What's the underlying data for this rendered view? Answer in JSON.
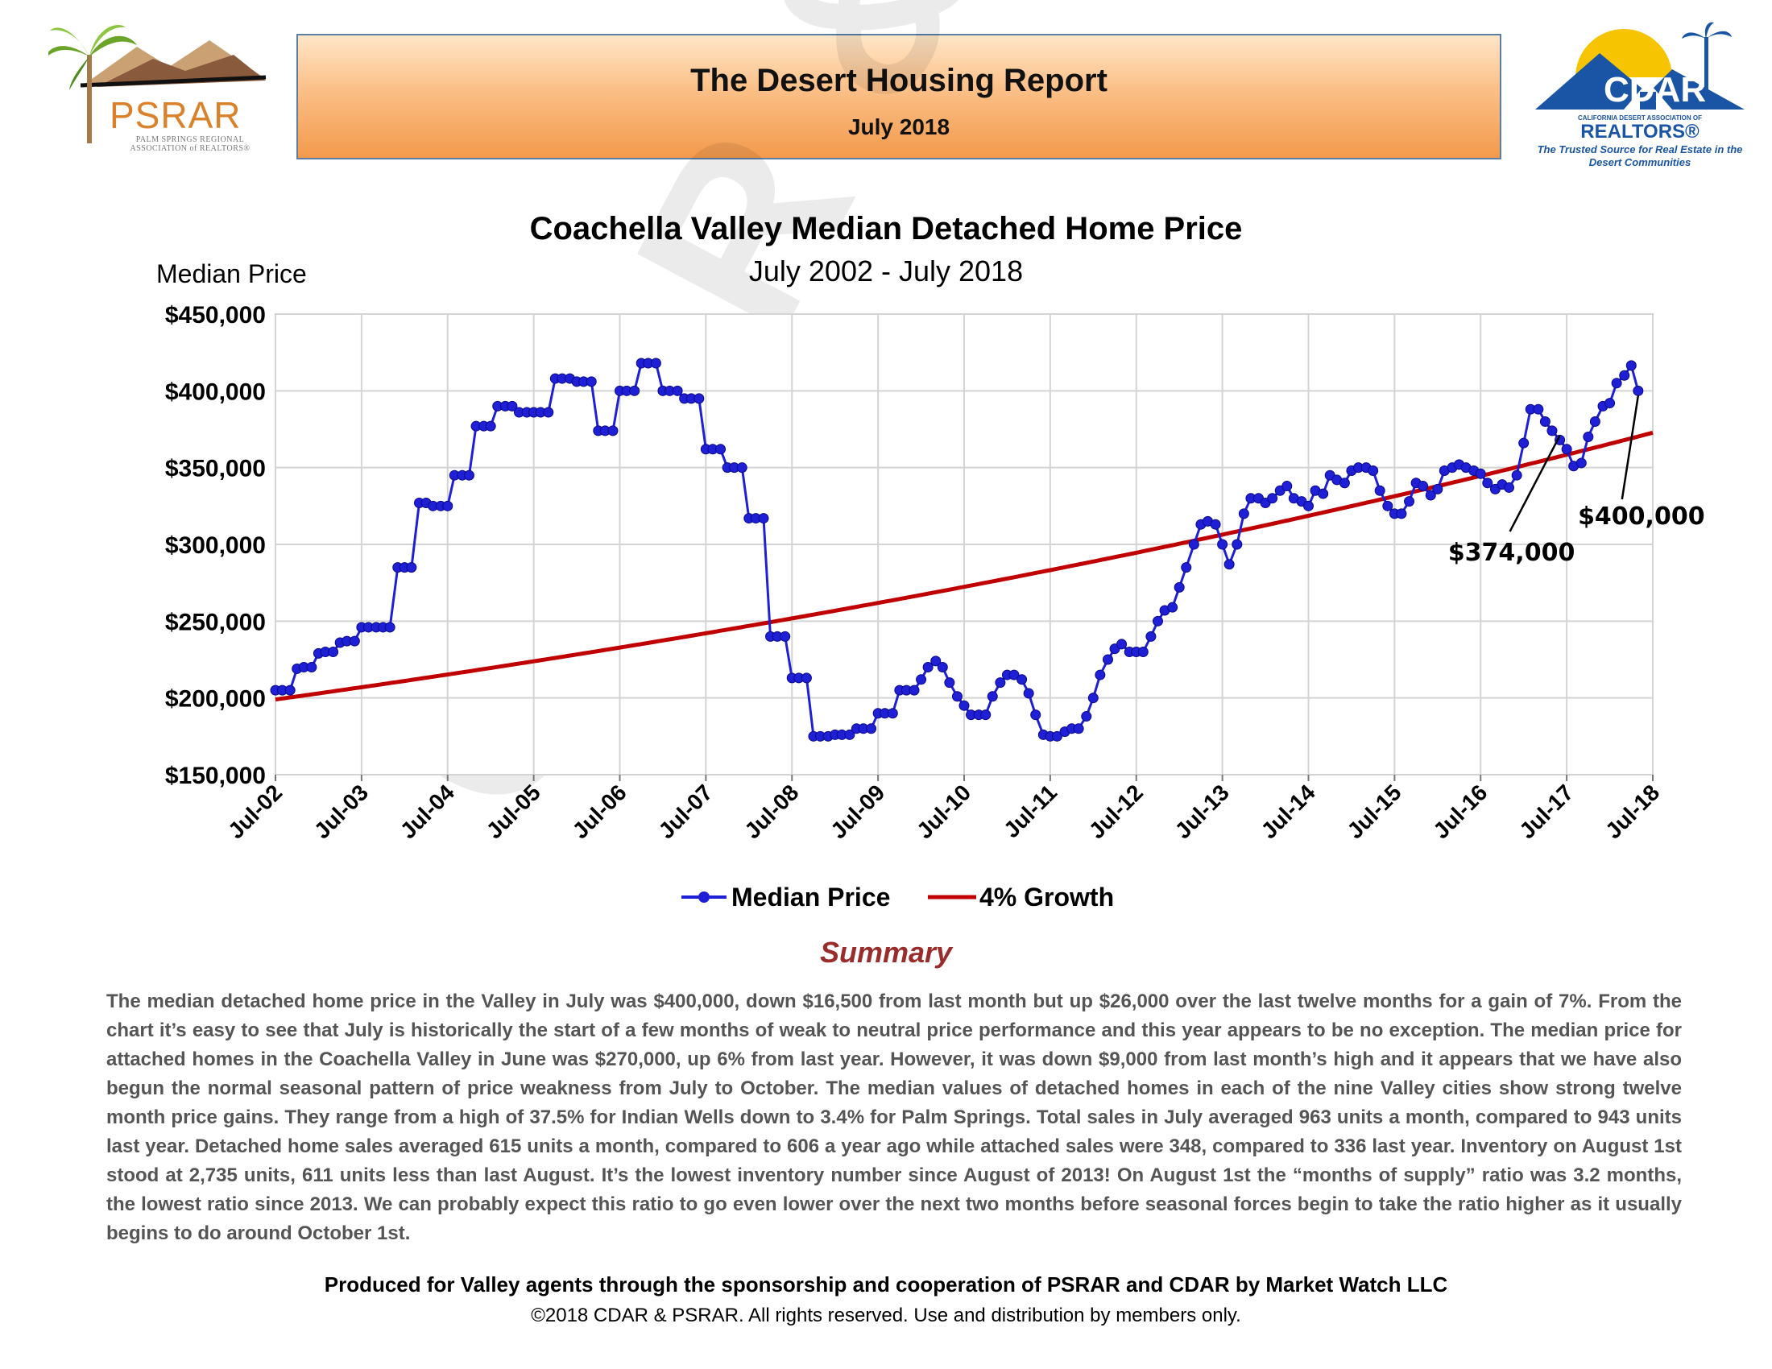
{
  "header": {
    "left_logo": {
      "name": "PSRAR",
      "subtitle": "PALM SPRINGS REGIONAL ASSOCIATION of REALTORS®",
      "icon": "palm-tree-mountains-logo"
    },
    "banner_title": "The Desert Housing Report",
    "banner_date": "July 2018",
    "right_logo": {
      "name": "CDAR",
      "assoc": "CALIFORNIA DESERT ASSOCIATION OF",
      "realtors": "REALTORS®",
      "tagline": "The Trusted Source for Real Estate in the Desert Communities",
      "icon": "house-palm-logo"
    }
  },
  "watermark": "CDAR & PSRAR",
  "colors": {
    "median": "#1f1fd6",
    "growth": "#c00000",
    "summary_heading": "#9b2c2c",
    "banner_border": "#5b7ea6"
  },
  "chart_data": {
    "type": "line",
    "title": "Coachella Valley Median Detached Home Price",
    "subtitle": "July 2002 - July 2018",
    "ylabel": "Median Price",
    "xlabel": "",
    "ylim": [
      150000,
      450000
    ],
    "yticks": [
      450000,
      400000,
      350000,
      300000,
      250000,
      200000,
      150000
    ],
    "ytick_labels": [
      "$450,000",
      "$400,000",
      "$350,000",
      "$300,000",
      "$250,000",
      "$200,000",
      "$150,000"
    ],
    "xlim": [
      2002.5,
      2018.5
    ],
    "x_tick_labels": [
      "Jul-02",
      "Jul-03",
      "Jul-04",
      "Jul-05",
      "Jul-06",
      "Jul-07",
      "Jul-08",
      "Jul-09",
      "Jul-10",
      "Jul-11",
      "Jul-12",
      "Jul-13",
      "Jul-14",
      "Jul-15",
      "Jul-16",
      "Jul-17",
      "Jul-18"
    ],
    "grid": true,
    "legend_position": "bottom",
    "series": [
      {
        "name": "Median Price",
        "points": [
          [
            2002.5,
            205000
          ],
          [
            2002.58,
            205000
          ],
          [
            2002.67,
            205000
          ],
          [
            2002.75,
            219000
          ],
          [
            2002.83,
            220000
          ],
          [
            2002.92,
            220000
          ],
          [
            2003.0,
            229000
          ],
          [
            2003.08,
            230000
          ],
          [
            2003.17,
            230000
          ],
          [
            2003.25,
            236000
          ],
          [
            2003.33,
            237000
          ],
          [
            2003.42,
            237000
          ],
          [
            2003.5,
            246000
          ],
          [
            2003.58,
            246000
          ],
          [
            2003.67,
            246000
          ],
          [
            2003.75,
            246000
          ],
          [
            2003.83,
            246000
          ],
          [
            2003.92,
            285000
          ],
          [
            2004.0,
            285000
          ],
          [
            2004.08,
            285000
          ],
          [
            2004.17,
            327000
          ],
          [
            2004.25,
            327000
          ],
          [
            2004.33,
            325000
          ],
          [
            2004.42,
            325000
          ],
          [
            2004.5,
            325000
          ],
          [
            2004.58,
            345000
          ],
          [
            2004.67,
            345000
          ],
          [
            2004.75,
            345000
          ],
          [
            2004.83,
            377000
          ],
          [
            2004.92,
            377000
          ],
          [
            2005.0,
            377000
          ],
          [
            2005.08,
            390000
          ],
          [
            2005.17,
            390000
          ],
          [
            2005.25,
            390000
          ],
          [
            2005.33,
            386000
          ],
          [
            2005.42,
            386000
          ],
          [
            2005.5,
            386000
          ],
          [
            2005.58,
            386000
          ],
          [
            2005.67,
            386000
          ],
          [
            2005.75,
            408000
          ],
          [
            2005.83,
            408000
          ],
          [
            2005.92,
            408000
          ],
          [
            2006.0,
            406000
          ],
          [
            2006.08,
            406000
          ],
          [
            2006.17,
            406000
          ],
          [
            2006.25,
            374000
          ],
          [
            2006.33,
            374000
          ],
          [
            2006.42,
            374000
          ],
          [
            2006.5,
            400000
          ],
          [
            2006.58,
            400000
          ],
          [
            2006.67,
            400000
          ],
          [
            2006.75,
            418000
          ],
          [
            2006.83,
            418000
          ],
          [
            2006.92,
            418000
          ],
          [
            2007.0,
            400000
          ],
          [
            2007.08,
            400000
          ],
          [
            2007.17,
            400000
          ],
          [
            2007.25,
            395000
          ],
          [
            2007.33,
            395000
          ],
          [
            2007.42,
            395000
          ],
          [
            2007.5,
            362000
          ],
          [
            2007.58,
            362000
          ],
          [
            2007.67,
            362000
          ],
          [
            2007.75,
            350000
          ],
          [
            2007.83,
            350000
          ],
          [
            2007.92,
            350000
          ],
          [
            2008.0,
            317000
          ],
          [
            2008.08,
            317000
          ],
          [
            2008.17,
            317000
          ],
          [
            2008.25,
            240000
          ],
          [
            2008.33,
            240000
          ],
          [
            2008.42,
            240000
          ],
          [
            2008.5,
            213000
          ],
          [
            2008.58,
            213000
          ],
          [
            2008.67,
            213000
          ],
          [
            2008.75,
            175000
          ],
          [
            2008.83,
            175000
          ],
          [
            2008.92,
            175000
          ],
          [
            2009.0,
            176000
          ],
          [
            2009.08,
            176000
          ],
          [
            2009.17,
            176000
          ],
          [
            2009.25,
            180000
          ],
          [
            2009.33,
            180000
          ],
          [
            2009.42,
            180000
          ],
          [
            2009.5,
            190000
          ],
          [
            2009.58,
            190000
          ],
          [
            2009.67,
            190000
          ],
          [
            2009.75,
            205000
          ],
          [
            2009.83,
            205000
          ],
          [
            2009.92,
            205000
          ],
          [
            2010.0,
            212000
          ],
          [
            2010.08,
            220000
          ],
          [
            2010.17,
            224000
          ],
          [
            2010.25,
            220000
          ],
          [
            2010.33,
            210000
          ],
          [
            2010.42,
            201000
          ],
          [
            2010.5,
            195000
          ],
          [
            2010.58,
            189000
          ],
          [
            2010.67,
            189000
          ],
          [
            2010.75,
            189000
          ],
          [
            2010.83,
            201000
          ],
          [
            2010.92,
            210000
          ],
          [
            2011.0,
            215000
          ],
          [
            2011.08,
            215000
          ],
          [
            2011.17,
            212000
          ],
          [
            2011.25,
            203000
          ],
          [
            2011.33,
            189000
          ],
          [
            2011.42,
            176000
          ],
          [
            2011.5,
            175000
          ],
          [
            2011.58,
            175000
          ],
          [
            2011.67,
            178000
          ],
          [
            2011.75,
            180000
          ],
          [
            2011.83,
            180000
          ],
          [
            2011.92,
            188000
          ],
          [
            2012.0,
            200000
          ],
          [
            2012.08,
            215000
          ],
          [
            2012.17,
            225000
          ],
          [
            2012.25,
            232000
          ],
          [
            2012.33,
            235000
          ],
          [
            2012.42,
            230000
          ],
          [
            2012.5,
            230000
          ],
          [
            2012.58,
            230000
          ],
          [
            2012.67,
            240000
          ],
          [
            2012.75,
            250000
          ],
          [
            2012.83,
            257000
          ],
          [
            2012.92,
            259000
          ],
          [
            2013.0,
            272000
          ],
          [
            2013.08,
            285000
          ],
          [
            2013.17,
            300000
          ],
          [
            2013.25,
            313000
          ],
          [
            2013.33,
            315000
          ],
          [
            2013.42,
            313000
          ],
          [
            2013.5,
            300000
          ],
          [
            2013.58,
            287000
          ],
          [
            2013.67,
            300000
          ],
          [
            2013.75,
            320000
          ],
          [
            2013.83,
            330000
          ],
          [
            2013.92,
            330000
          ],
          [
            2014.0,
            327000
          ],
          [
            2014.08,
            330000
          ],
          [
            2014.17,
            335000
          ],
          [
            2014.25,
            338000
          ],
          [
            2014.33,
            330000
          ],
          [
            2014.42,
            328000
          ],
          [
            2014.5,
            325000
          ],
          [
            2014.58,
            335000
          ],
          [
            2014.67,
            333000
          ],
          [
            2014.75,
            345000
          ],
          [
            2014.83,
            342000
          ],
          [
            2014.92,
            340000
          ],
          [
            2015.0,
            348000
          ],
          [
            2015.08,
            350000
          ],
          [
            2015.17,
            350000
          ],
          [
            2015.25,
            348000
          ],
          [
            2015.33,
            335000
          ],
          [
            2015.42,
            325000
          ],
          [
            2015.5,
            320000
          ],
          [
            2015.58,
            320000
          ],
          [
            2015.67,
            328000
          ],
          [
            2015.75,
            340000
          ],
          [
            2015.83,
            338000
          ],
          [
            2015.92,
            332000
          ],
          [
            2016.0,
            336000
          ],
          [
            2016.08,
            348000
          ],
          [
            2016.17,
            350000
          ],
          [
            2016.25,
            352000
          ],
          [
            2016.33,
            350000
          ],
          [
            2016.42,
            348000
          ],
          [
            2016.5,
            346000
          ],
          [
            2016.58,
            340000
          ],
          [
            2016.67,
            336000
          ],
          [
            2016.75,
            339000
          ],
          [
            2016.83,
            337000
          ],
          [
            2016.92,
            345000
          ],
          [
            2017.0,
            366000
          ],
          [
            2017.08,
            388000
          ],
          [
            2017.17,
            388000
          ],
          [
            2017.25,
            380000
          ],
          [
            2017.33,
            374000
          ],
          [
            2017.42,
            368000
          ],
          [
            2017.5,
            362000
          ],
          [
            2017.58,
            351000
          ],
          [
            2017.67,
            353000
          ],
          [
            2017.75,
            370000
          ],
          [
            2017.83,
            380000
          ],
          [
            2017.92,
            390000
          ],
          [
            2018.0,
            392000
          ],
          [
            2018.08,
            405000
          ],
          [
            2018.17,
            410000
          ],
          [
            2018.25,
            416500
          ],
          [
            2018.33,
            400000
          ]
        ]
      },
      {
        "name": "4% Growth",
        "start_x": 2002.5,
        "end_x": 2018.5,
        "start_y": 199000,
        "annual_growth": 0.04
      }
    ],
    "annotations": [
      {
        "label": "$374,000",
        "x": 2017.42,
        "y": 374000
      },
      {
        "label": "$400,000",
        "x": 2018.33,
        "y": 400000
      }
    ]
  },
  "summary": {
    "heading": "Summary",
    "text": "The median detached home price in the Valley in July was $400,000, down $16,500 from last month but up $26,000 over the last twelve months for a gain of 7%. From the chart it’s easy to see that July is historically the start of a few months of weak to neutral price performance and this year appears to be no exception. The median price for attached homes in the Coachella Valley in June was $270,000, up 6% from last year. However, it was down $9,000 from last month’s high and it appears that we have also begun the normal seasonal pattern of price weakness from July to October. The median values of detached homes in each of the nine Valley cities show strong twelve month price gains. They range from a high of 37.5% for Indian Wells down to 3.4% for Palm Springs. Total sales in July averaged 963 units a month, compared to 943 units last year. Detached home sales averaged 615 units a month, compared to 606 a year ago while attached sales were 348, compared to 336 last year. Inventory on August 1st stood at 2,735 units, 611 units less than last August. It’s the lowest inventory number since August of 2013! On August 1st the “months of supply” ratio was 3.2 months, the lowest ratio since 2013. We can probably expect this ratio to go even lower over the next two months before seasonal forces begin to take the ratio higher as it usually begins to do around October 1st."
  },
  "footer": {
    "line1": "Produced for Valley agents through the sponsorship and cooperation of PSRAR and CDAR by Market Watch LLC",
    "line2": "©2018 CDAR & PSRAR.  All rights reserved.  Use and distribution by members only."
  }
}
